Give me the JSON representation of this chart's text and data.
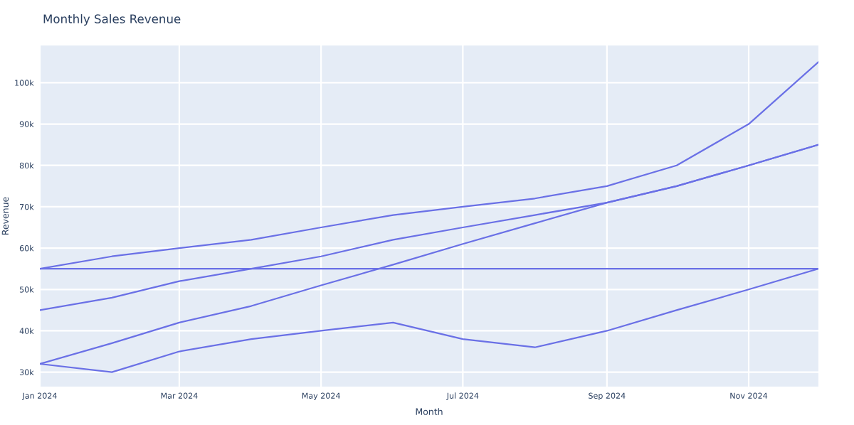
{
  "chart_data": {
    "type": "line",
    "title": "Monthly Sales Revenue",
    "xlabel": "Month",
    "ylabel": "Revenue",
    "x": [
      "2024-01-01",
      "2024-02-01",
      "2024-03-01",
      "2024-04-01",
      "2024-05-01",
      "2024-06-01",
      "2024-07-01",
      "2024-08-01",
      "2024-09-01",
      "2024-10-01",
      "2024-11-01",
      "2024-12-01"
    ],
    "series": [
      {
        "color": "#6a70e6",
        "values": [
          55,
          58,
          60,
          62,
          65,
          68,
          70,
          72,
          75,
          80,
          90,
          105
        ]
      },
      {
        "color": "#6a70e6",
        "values": [
          45,
          48,
          52,
          55,
          58,
          62,
          65,
          68,
          71,
          75,
          80,
          85
        ]
      },
      {
        "color": "#6a70e6",
        "values": [
          32,
          37,
          42,
          46,
          51,
          56,
          61,
          66,
          71,
          75,
          80,
          85
        ]
      },
      {
        "color": "#6a70e6",
        "values": [
          55,
          55,
          55,
          55,
          55,
          55,
          55,
          55,
          55,
          55,
          55,
          55
        ]
      },
      {
        "color": "#6a70e6",
        "values": [
          32,
          30,
          35,
          38,
          40,
          42,
          38,
          36,
          40,
          45,
          50,
          55
        ]
      }
    ],
    "xlim": [
      "2024-01-01",
      "2024-12-01"
    ],
    "xticks": [
      {
        "value": "2024-01-01",
        "label": "Jan 2024"
      },
      {
        "value": "2024-03-01",
        "label": "Mar 2024"
      },
      {
        "value": "2024-05-01",
        "label": "May 2024"
      },
      {
        "value": "2024-07-01",
        "label": "Jul 2024"
      },
      {
        "value": "2024-09-01",
        "label": "Sep 2024"
      },
      {
        "value": "2024-11-01",
        "label": "Nov 2024"
      }
    ],
    "ylim": [
      26.5,
      109
    ],
    "yticks": [
      {
        "value": 30,
        "label": "30k"
      },
      {
        "value": 40,
        "label": "40k"
      },
      {
        "value": 50,
        "label": "50k"
      },
      {
        "value": 60,
        "label": "60k"
      },
      {
        "value": 70,
        "label": "70k"
      },
      {
        "value": 80,
        "label": "80k"
      },
      {
        "value": 90,
        "label": "90k"
      },
      {
        "value": 100,
        "label": "100k"
      }
    ],
    "grid": true,
    "legend": false,
    "marker": "none",
    "line_style": "solid"
  }
}
